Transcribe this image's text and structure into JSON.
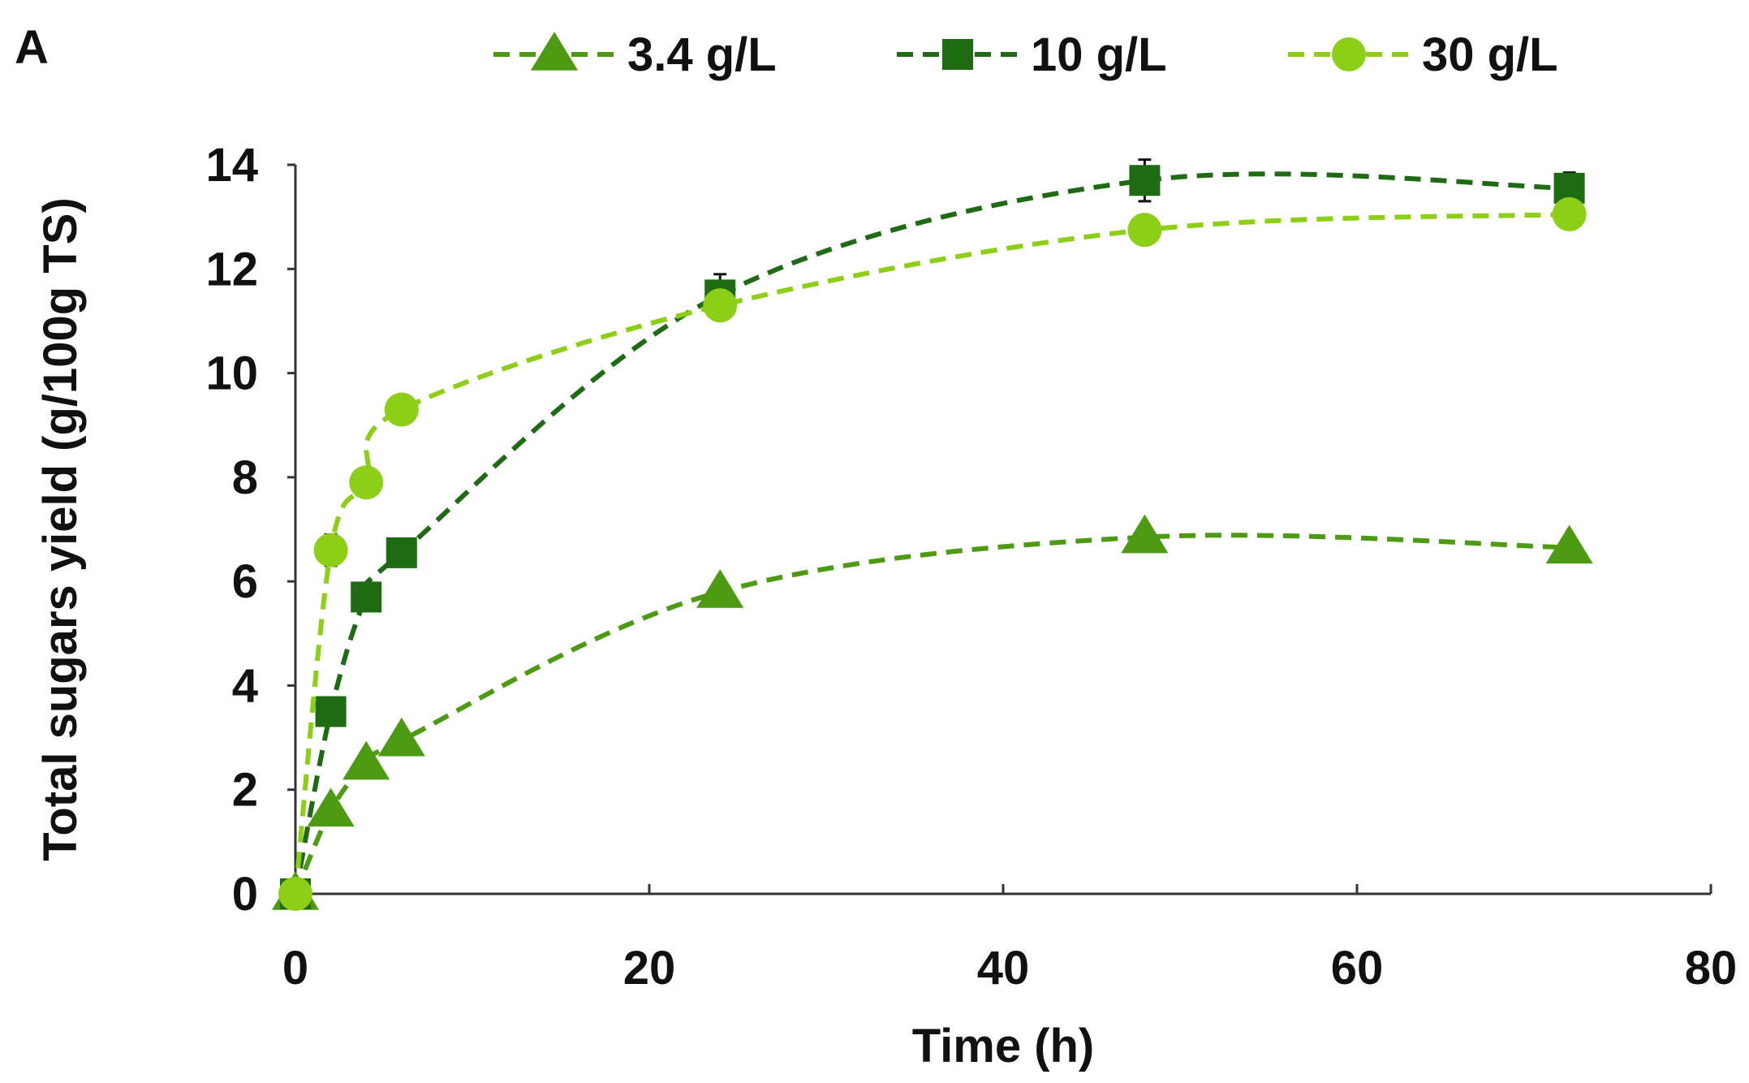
{
  "chart_data": {
    "type": "line",
    "panel_label": "A",
    "title": "",
    "xlabel": "Time (h)",
    "ylabel": "Total sugars yield (g/100g TS)",
    "xlim": [
      0,
      80
    ],
    "ylim": [
      0,
      14
    ],
    "xticks": [
      0,
      20,
      40,
      60,
      80
    ],
    "yticks": [
      0,
      2,
      4,
      6,
      8,
      10,
      12,
      14
    ],
    "grid": false,
    "legend_position": "top",
    "series": [
      {
        "name": "3.4 g/L",
        "marker": "triangle",
        "color": "#4d9a13",
        "x": [
          0,
          2,
          4,
          6,
          24,
          48,
          72
        ],
        "y": [
          0,
          1.6,
          2.5,
          2.95,
          5.8,
          6.85,
          6.65
        ],
        "err": [
          0,
          0.1,
          0.1,
          0.1,
          0.15,
          0.1,
          0.1
        ]
      },
      {
        "name": "10 g/L",
        "marker": "square",
        "color": "#1e6b14",
        "x": [
          0,
          2,
          4,
          6,
          24,
          48,
          72
        ],
        "y": [
          0,
          3.5,
          5.7,
          6.55,
          11.5,
          13.7,
          13.55
        ],
        "err": [
          0,
          0.1,
          0.1,
          0.1,
          0.4,
          0.4,
          0.3
        ]
      },
      {
        "name": "30 g/L",
        "marker": "circle",
        "color": "#8ccf16",
        "x": [
          0,
          2,
          4,
          6,
          24,
          48,
          72
        ],
        "y": [
          0,
          6.6,
          7.9,
          9.3,
          11.3,
          12.75,
          13.05
        ],
        "err": [
          0,
          0.3,
          0.1,
          0.1,
          0.2,
          0.1,
          0.1
        ]
      }
    ]
  }
}
